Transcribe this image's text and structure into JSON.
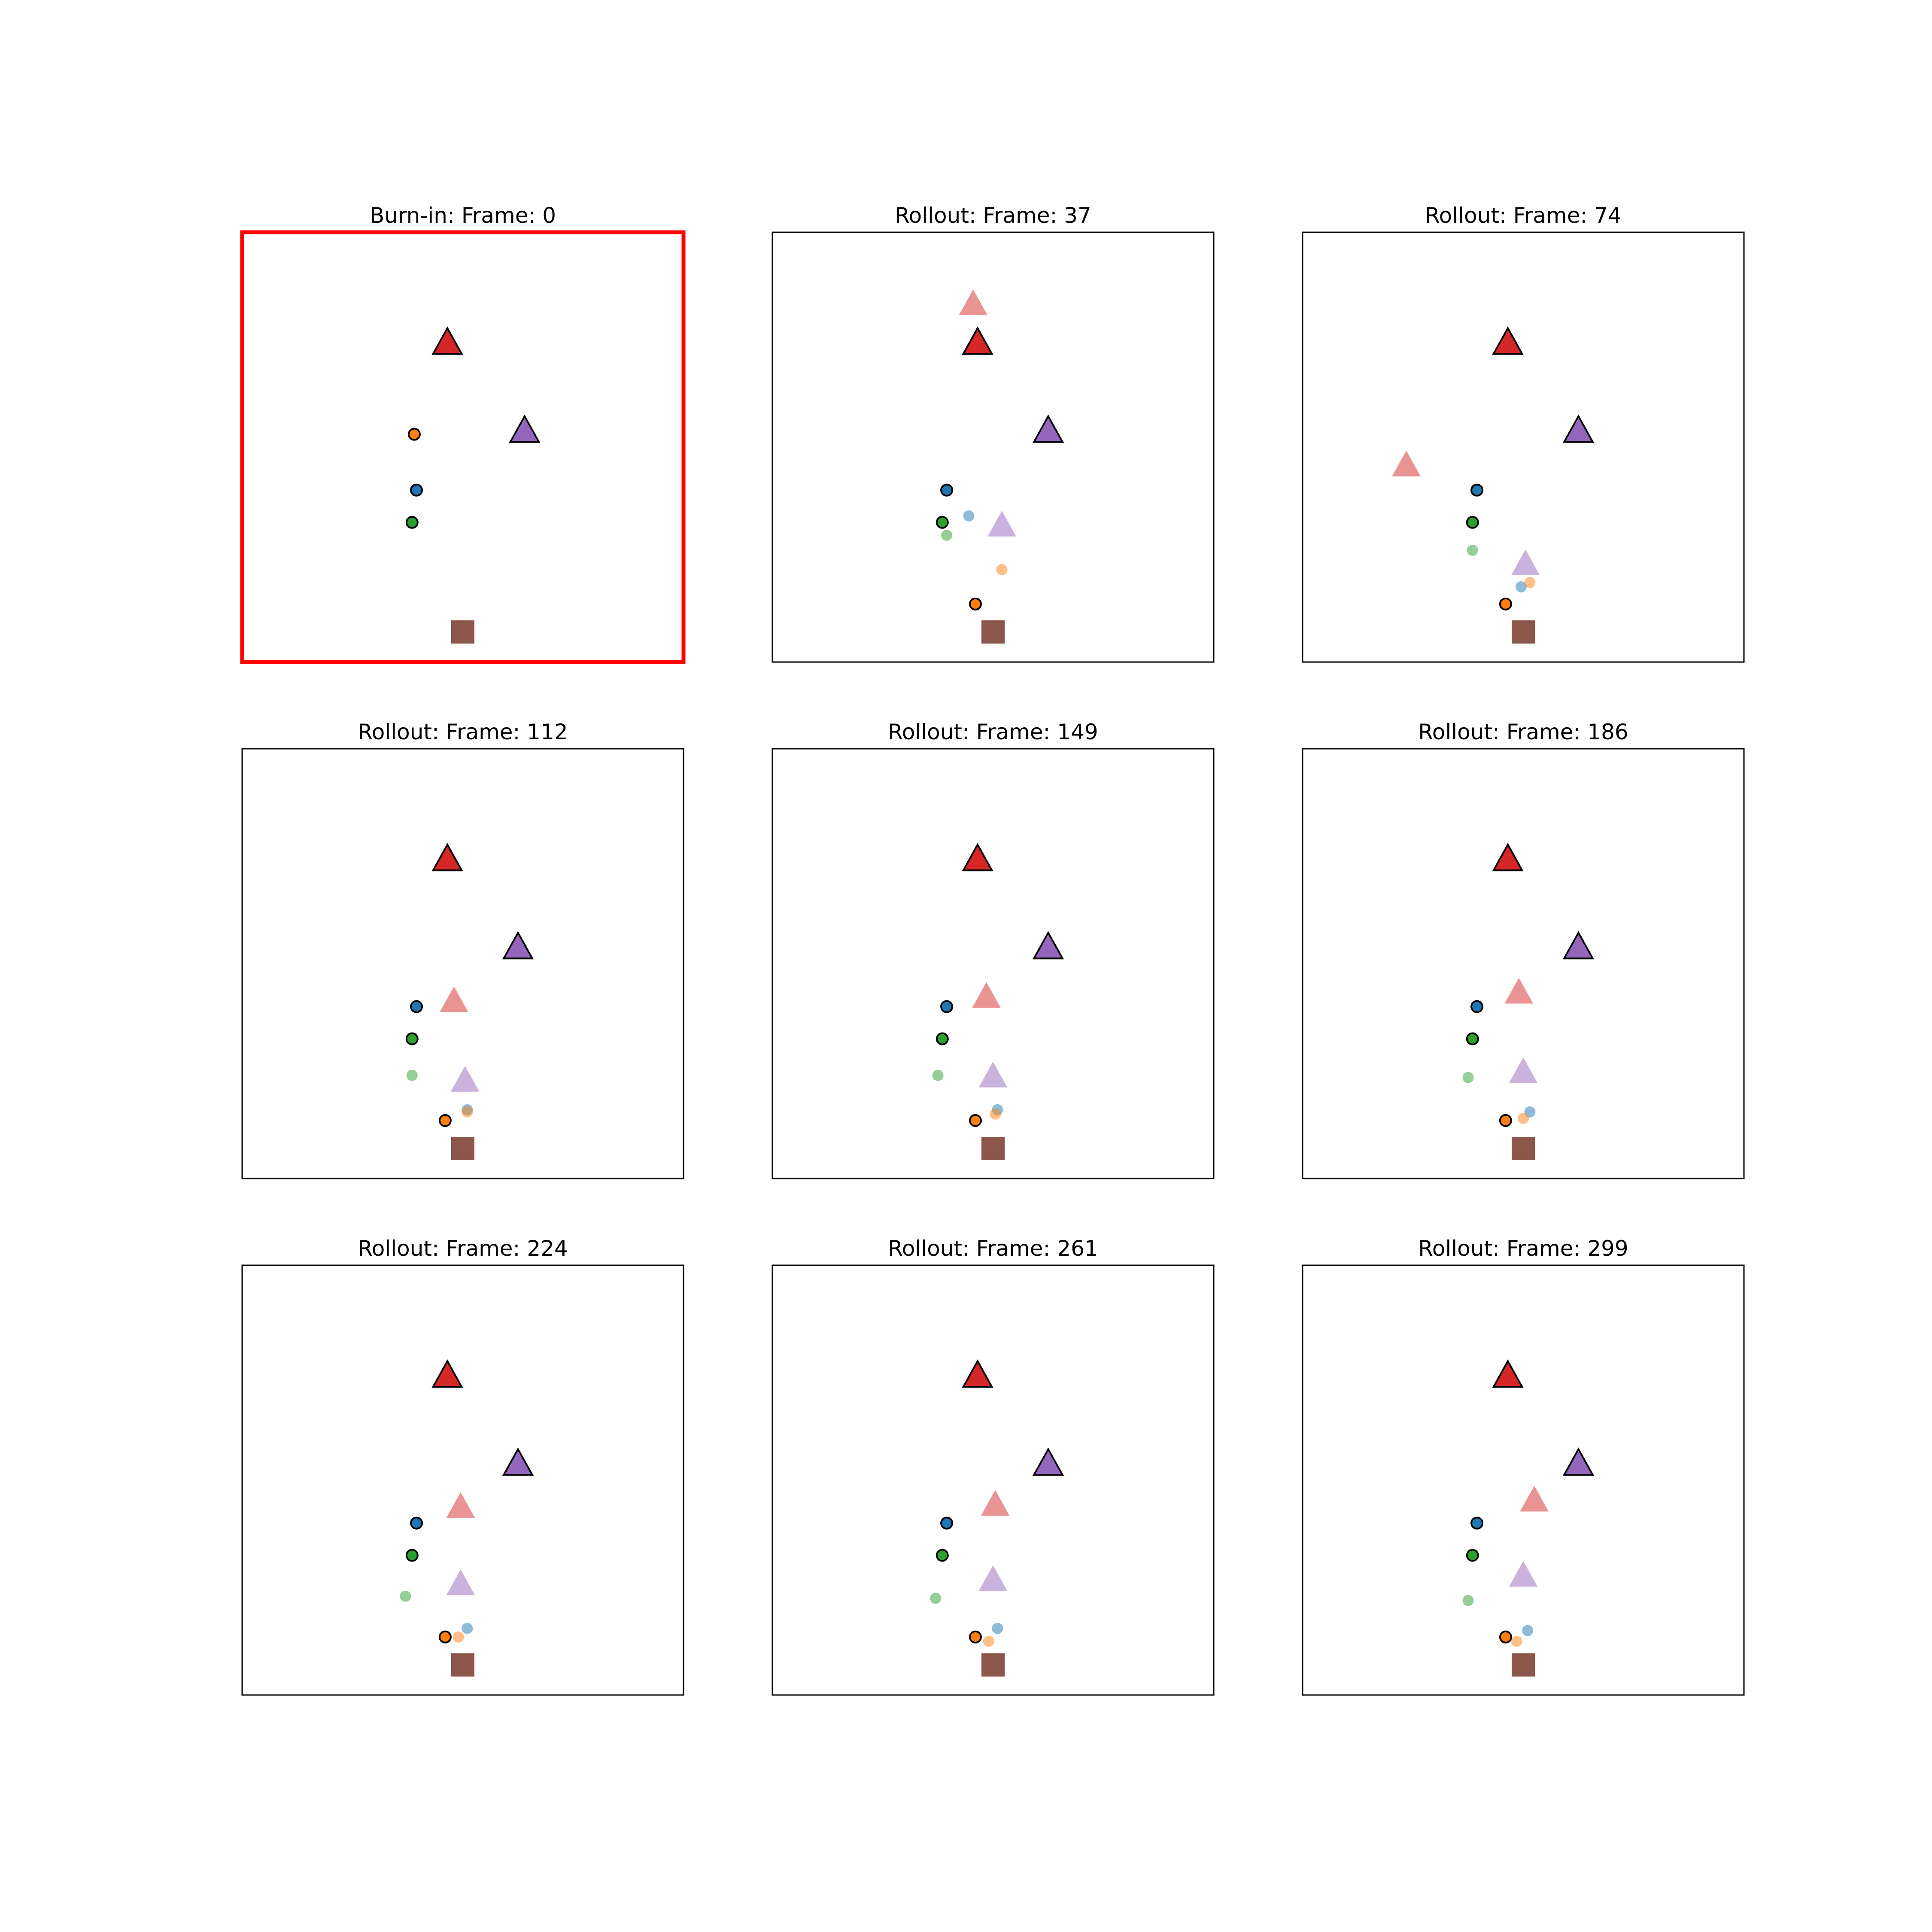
{
  "colors": {
    "background": "#ffffff",
    "axes_frame": "#000000",
    "highlight_frame": "#ff0000",
    "blue": "#1f77b4",
    "orange": "#ff7f0e",
    "green": "#2ca02c",
    "red": "#d62728",
    "purple": "#9467bd",
    "brown": "#8c564b",
    "marker_edge": "#000000"
  },
  "chart_data": [
    {
      "type": "scatter",
      "title": "Burn-in: Frame: 0",
      "highlighted": true,
      "xlim": [
        0,
        100
      ],
      "ylim": [
        0,
        100
      ],
      "axes_visible": false,
      "ground_truth": [
        {
          "name": "blue",
          "shape": "circle",
          "x": 39.5,
          "y": 40.0
        },
        {
          "name": "orange",
          "shape": "circle",
          "x": 39.0,
          "y": 53.0
        },
        {
          "name": "green",
          "shape": "circle",
          "x": 38.5,
          "y": 32.5
        },
        {
          "name": "red",
          "shape": "triangle",
          "x": 46.5,
          "y": 74.0
        },
        {
          "name": "purple",
          "shape": "triangle",
          "x": 64.0,
          "y": 53.5
        }
      ],
      "predicted": [],
      "target": {
        "shape": "square",
        "x": 50.0,
        "y": 7.0
      }
    },
    {
      "type": "scatter",
      "title": "Rollout: Frame: 37",
      "highlighted": false,
      "xlim": [
        0,
        100
      ],
      "ylim": [
        0,
        100
      ],
      "axes_visible": false,
      "ground_truth": [
        {
          "name": "blue",
          "shape": "circle",
          "x": 39.5,
          "y": 40.0
        },
        {
          "name": "orange",
          "shape": "circle",
          "x": 46.0,
          "y": 13.5
        },
        {
          "name": "green",
          "shape": "circle",
          "x": 38.5,
          "y": 32.5
        },
        {
          "name": "red",
          "shape": "triangle",
          "x": 46.5,
          "y": 74.0
        },
        {
          "name": "purple",
          "shape": "triangle",
          "x": 62.5,
          "y": 53.5
        }
      ],
      "predicted": [
        {
          "name": "blue",
          "shape": "circle",
          "x": 44.5,
          "y": 34.0
        },
        {
          "name": "orange",
          "shape": "circle",
          "x": 52.0,
          "y": 21.5
        },
        {
          "name": "green",
          "shape": "circle",
          "x": 39.5,
          "y": 29.5
        },
        {
          "name": "red",
          "shape": "triangle",
          "x": 45.5,
          "y": 83.0
        },
        {
          "name": "purple",
          "shape": "triangle",
          "x": 52.0,
          "y": 31.5
        }
      ],
      "target": {
        "shape": "square",
        "x": 50.0,
        "y": 7.0
      }
    },
    {
      "type": "scatter",
      "title": "Rollout: Frame: 74",
      "highlighted": false,
      "xlim": [
        0,
        100
      ],
      "ylim": [
        0,
        100
      ],
      "axes_visible": false,
      "ground_truth": [
        {
          "name": "blue",
          "shape": "circle",
          "x": 39.5,
          "y": 40.0
        },
        {
          "name": "orange",
          "shape": "circle",
          "x": 46.0,
          "y": 13.5
        },
        {
          "name": "green",
          "shape": "circle",
          "x": 38.5,
          "y": 32.5
        },
        {
          "name": "red",
          "shape": "triangle",
          "x": 46.5,
          "y": 74.0
        },
        {
          "name": "purple",
          "shape": "triangle",
          "x": 62.5,
          "y": 53.5
        }
      ],
      "predicted": [
        {
          "name": "blue",
          "shape": "circle",
          "x": 49.5,
          "y": 17.5
        },
        {
          "name": "orange",
          "shape": "circle",
          "x": 51.5,
          "y": 18.5
        },
        {
          "name": "green",
          "shape": "circle",
          "x": 38.5,
          "y": 26.0
        },
        {
          "name": "red",
          "shape": "triangle",
          "x": 23.5,
          "y": 45.5
        },
        {
          "name": "purple",
          "shape": "triangle",
          "x": 50.5,
          "y": 22.5
        }
      ],
      "target": {
        "shape": "square",
        "x": 50.0,
        "y": 7.0
      }
    },
    {
      "type": "scatter",
      "title": "Rollout: Frame: 112",
      "highlighted": false,
      "xlim": [
        0,
        100
      ],
      "ylim": [
        0,
        100
      ],
      "axes_visible": false,
      "ground_truth": [
        {
          "name": "blue",
          "shape": "circle",
          "x": 39.5,
          "y": 40.0
        },
        {
          "name": "orange",
          "shape": "circle",
          "x": 46.0,
          "y": 13.5
        },
        {
          "name": "green",
          "shape": "circle",
          "x": 38.5,
          "y": 32.5
        },
        {
          "name": "red",
          "shape": "triangle",
          "x": 46.5,
          "y": 74.0
        },
        {
          "name": "purple",
          "shape": "triangle",
          "x": 62.5,
          "y": 53.5
        }
      ],
      "predicted": [
        {
          "name": "blue",
          "shape": "circle",
          "x": 51.0,
          "y": 16.0
        },
        {
          "name": "orange",
          "shape": "circle",
          "x": 51.0,
          "y": 15.5
        },
        {
          "name": "green",
          "shape": "circle",
          "x": 38.5,
          "y": 24.0
        },
        {
          "name": "red",
          "shape": "triangle",
          "x": 48.0,
          "y": 41.0
        },
        {
          "name": "purple",
          "shape": "triangle",
          "x": 50.5,
          "y": 22.5
        }
      ],
      "target": {
        "shape": "square",
        "x": 50.0,
        "y": 7.0
      }
    },
    {
      "type": "scatter",
      "title": "Rollout: Frame: 149",
      "highlighted": false,
      "xlim": [
        0,
        100
      ],
      "ylim": [
        0,
        100
      ],
      "axes_visible": false,
      "ground_truth": [
        {
          "name": "blue",
          "shape": "circle",
          "x": 39.5,
          "y": 40.0
        },
        {
          "name": "orange",
          "shape": "circle",
          "x": 46.0,
          "y": 13.5
        },
        {
          "name": "green",
          "shape": "circle",
          "x": 38.5,
          "y": 32.5
        },
        {
          "name": "red",
          "shape": "triangle",
          "x": 46.5,
          "y": 74.0
        },
        {
          "name": "purple",
          "shape": "triangle",
          "x": 62.5,
          "y": 53.5
        }
      ],
      "predicted": [
        {
          "name": "blue",
          "shape": "circle",
          "x": 51.0,
          "y": 16.0
        },
        {
          "name": "orange",
          "shape": "circle",
          "x": 50.5,
          "y": 15.0
        },
        {
          "name": "green",
          "shape": "circle",
          "x": 37.5,
          "y": 24.0
        },
        {
          "name": "red",
          "shape": "triangle",
          "x": 48.5,
          "y": 42.0
        },
        {
          "name": "purple",
          "shape": "triangle",
          "x": 50.0,
          "y": 23.5
        }
      ],
      "target": {
        "shape": "square",
        "x": 50.0,
        "y": 7.0
      }
    },
    {
      "type": "scatter",
      "title": "Rollout: Frame: 186",
      "highlighted": false,
      "xlim": [
        0,
        100
      ],
      "ylim": [
        0,
        100
      ],
      "axes_visible": false,
      "ground_truth": [
        {
          "name": "blue",
          "shape": "circle",
          "x": 39.5,
          "y": 40.0
        },
        {
          "name": "orange",
          "shape": "circle",
          "x": 46.0,
          "y": 13.5
        },
        {
          "name": "green",
          "shape": "circle",
          "x": 38.5,
          "y": 32.5
        },
        {
          "name": "red",
          "shape": "triangle",
          "x": 46.5,
          "y": 74.0
        },
        {
          "name": "purple",
          "shape": "triangle",
          "x": 62.5,
          "y": 53.5
        }
      ],
      "predicted": [
        {
          "name": "blue",
          "shape": "circle",
          "x": 51.5,
          "y": 15.5
        },
        {
          "name": "orange",
          "shape": "circle",
          "x": 50.0,
          "y": 14.0
        },
        {
          "name": "green",
          "shape": "circle",
          "x": 37.5,
          "y": 23.5
        },
        {
          "name": "red",
          "shape": "triangle",
          "x": 49.0,
          "y": 43.0
        },
        {
          "name": "purple",
          "shape": "triangle",
          "x": 50.0,
          "y": 24.5
        }
      ],
      "target": {
        "shape": "square",
        "x": 50.0,
        "y": 7.0
      }
    },
    {
      "type": "scatter",
      "title": "Rollout: Frame: 224",
      "highlighted": false,
      "xlim": [
        0,
        100
      ],
      "ylim": [
        0,
        100
      ],
      "axes_visible": false,
      "ground_truth": [
        {
          "name": "blue",
          "shape": "circle",
          "x": 39.5,
          "y": 40.0
        },
        {
          "name": "orange",
          "shape": "circle",
          "x": 46.0,
          "y": 13.5
        },
        {
          "name": "green",
          "shape": "circle",
          "x": 38.5,
          "y": 32.5
        },
        {
          "name": "red",
          "shape": "triangle",
          "x": 46.5,
          "y": 74.0
        },
        {
          "name": "purple",
          "shape": "triangle",
          "x": 62.5,
          "y": 53.5
        }
      ],
      "predicted": [
        {
          "name": "blue",
          "shape": "circle",
          "x": 51.0,
          "y": 15.5
        },
        {
          "name": "orange",
          "shape": "circle",
          "x": 49.0,
          "y": 13.5
        },
        {
          "name": "green",
          "shape": "circle",
          "x": 37.0,
          "y": 23.0
        },
        {
          "name": "red",
          "shape": "triangle",
          "x": 49.5,
          "y": 43.5
        },
        {
          "name": "purple",
          "shape": "triangle",
          "x": 49.5,
          "y": 25.5
        }
      ],
      "target": {
        "shape": "square",
        "x": 50.0,
        "y": 7.0
      }
    },
    {
      "type": "scatter",
      "title": "Rollout: Frame: 261",
      "highlighted": false,
      "xlim": [
        0,
        100
      ],
      "ylim": [
        0,
        100
      ],
      "axes_visible": false,
      "ground_truth": [
        {
          "name": "blue",
          "shape": "circle",
          "x": 39.5,
          "y": 40.0
        },
        {
          "name": "orange",
          "shape": "circle",
          "x": 46.0,
          "y": 13.5
        },
        {
          "name": "green",
          "shape": "circle",
          "x": 38.5,
          "y": 32.5
        },
        {
          "name": "red",
          "shape": "triangle",
          "x": 46.5,
          "y": 74.0
        },
        {
          "name": "purple",
          "shape": "triangle",
          "x": 62.5,
          "y": 53.5
        }
      ],
      "predicted": [
        {
          "name": "blue",
          "shape": "circle",
          "x": 51.0,
          "y": 15.5
        },
        {
          "name": "orange",
          "shape": "circle",
          "x": 49.0,
          "y": 12.5
        },
        {
          "name": "green",
          "shape": "circle",
          "x": 37.0,
          "y": 22.5
        },
        {
          "name": "red",
          "shape": "triangle",
          "x": 50.5,
          "y": 44.0
        },
        {
          "name": "purple",
          "shape": "triangle",
          "x": 50.0,
          "y": 26.5
        }
      ],
      "target": {
        "shape": "square",
        "x": 50.0,
        "y": 7.0
      }
    },
    {
      "type": "scatter",
      "title": "Rollout: Frame: 299",
      "highlighted": false,
      "xlim": [
        0,
        100
      ],
      "ylim": [
        0,
        100
      ],
      "axes_visible": false,
      "ground_truth": [
        {
          "name": "blue",
          "shape": "circle",
          "x": 39.5,
          "y": 40.0
        },
        {
          "name": "orange",
          "shape": "circle",
          "x": 46.0,
          "y": 13.5
        },
        {
          "name": "green",
          "shape": "circle",
          "x": 38.5,
          "y": 32.5
        },
        {
          "name": "red",
          "shape": "triangle",
          "x": 46.5,
          "y": 74.0
        },
        {
          "name": "purple",
          "shape": "triangle",
          "x": 62.5,
          "y": 53.5
        }
      ],
      "predicted": [
        {
          "name": "blue",
          "shape": "circle",
          "x": 51.0,
          "y": 15.0
        },
        {
          "name": "orange",
          "shape": "circle",
          "x": 48.5,
          "y": 12.5
        },
        {
          "name": "green",
          "shape": "circle",
          "x": 37.5,
          "y": 22.0
        },
        {
          "name": "red",
          "shape": "triangle",
          "x": 52.5,
          "y": 45.0
        },
        {
          "name": "purple",
          "shape": "triangle",
          "x": 50.0,
          "y": 27.5
        }
      ],
      "target": {
        "shape": "square",
        "x": 50.0,
        "y": 7.0
      }
    }
  ]
}
